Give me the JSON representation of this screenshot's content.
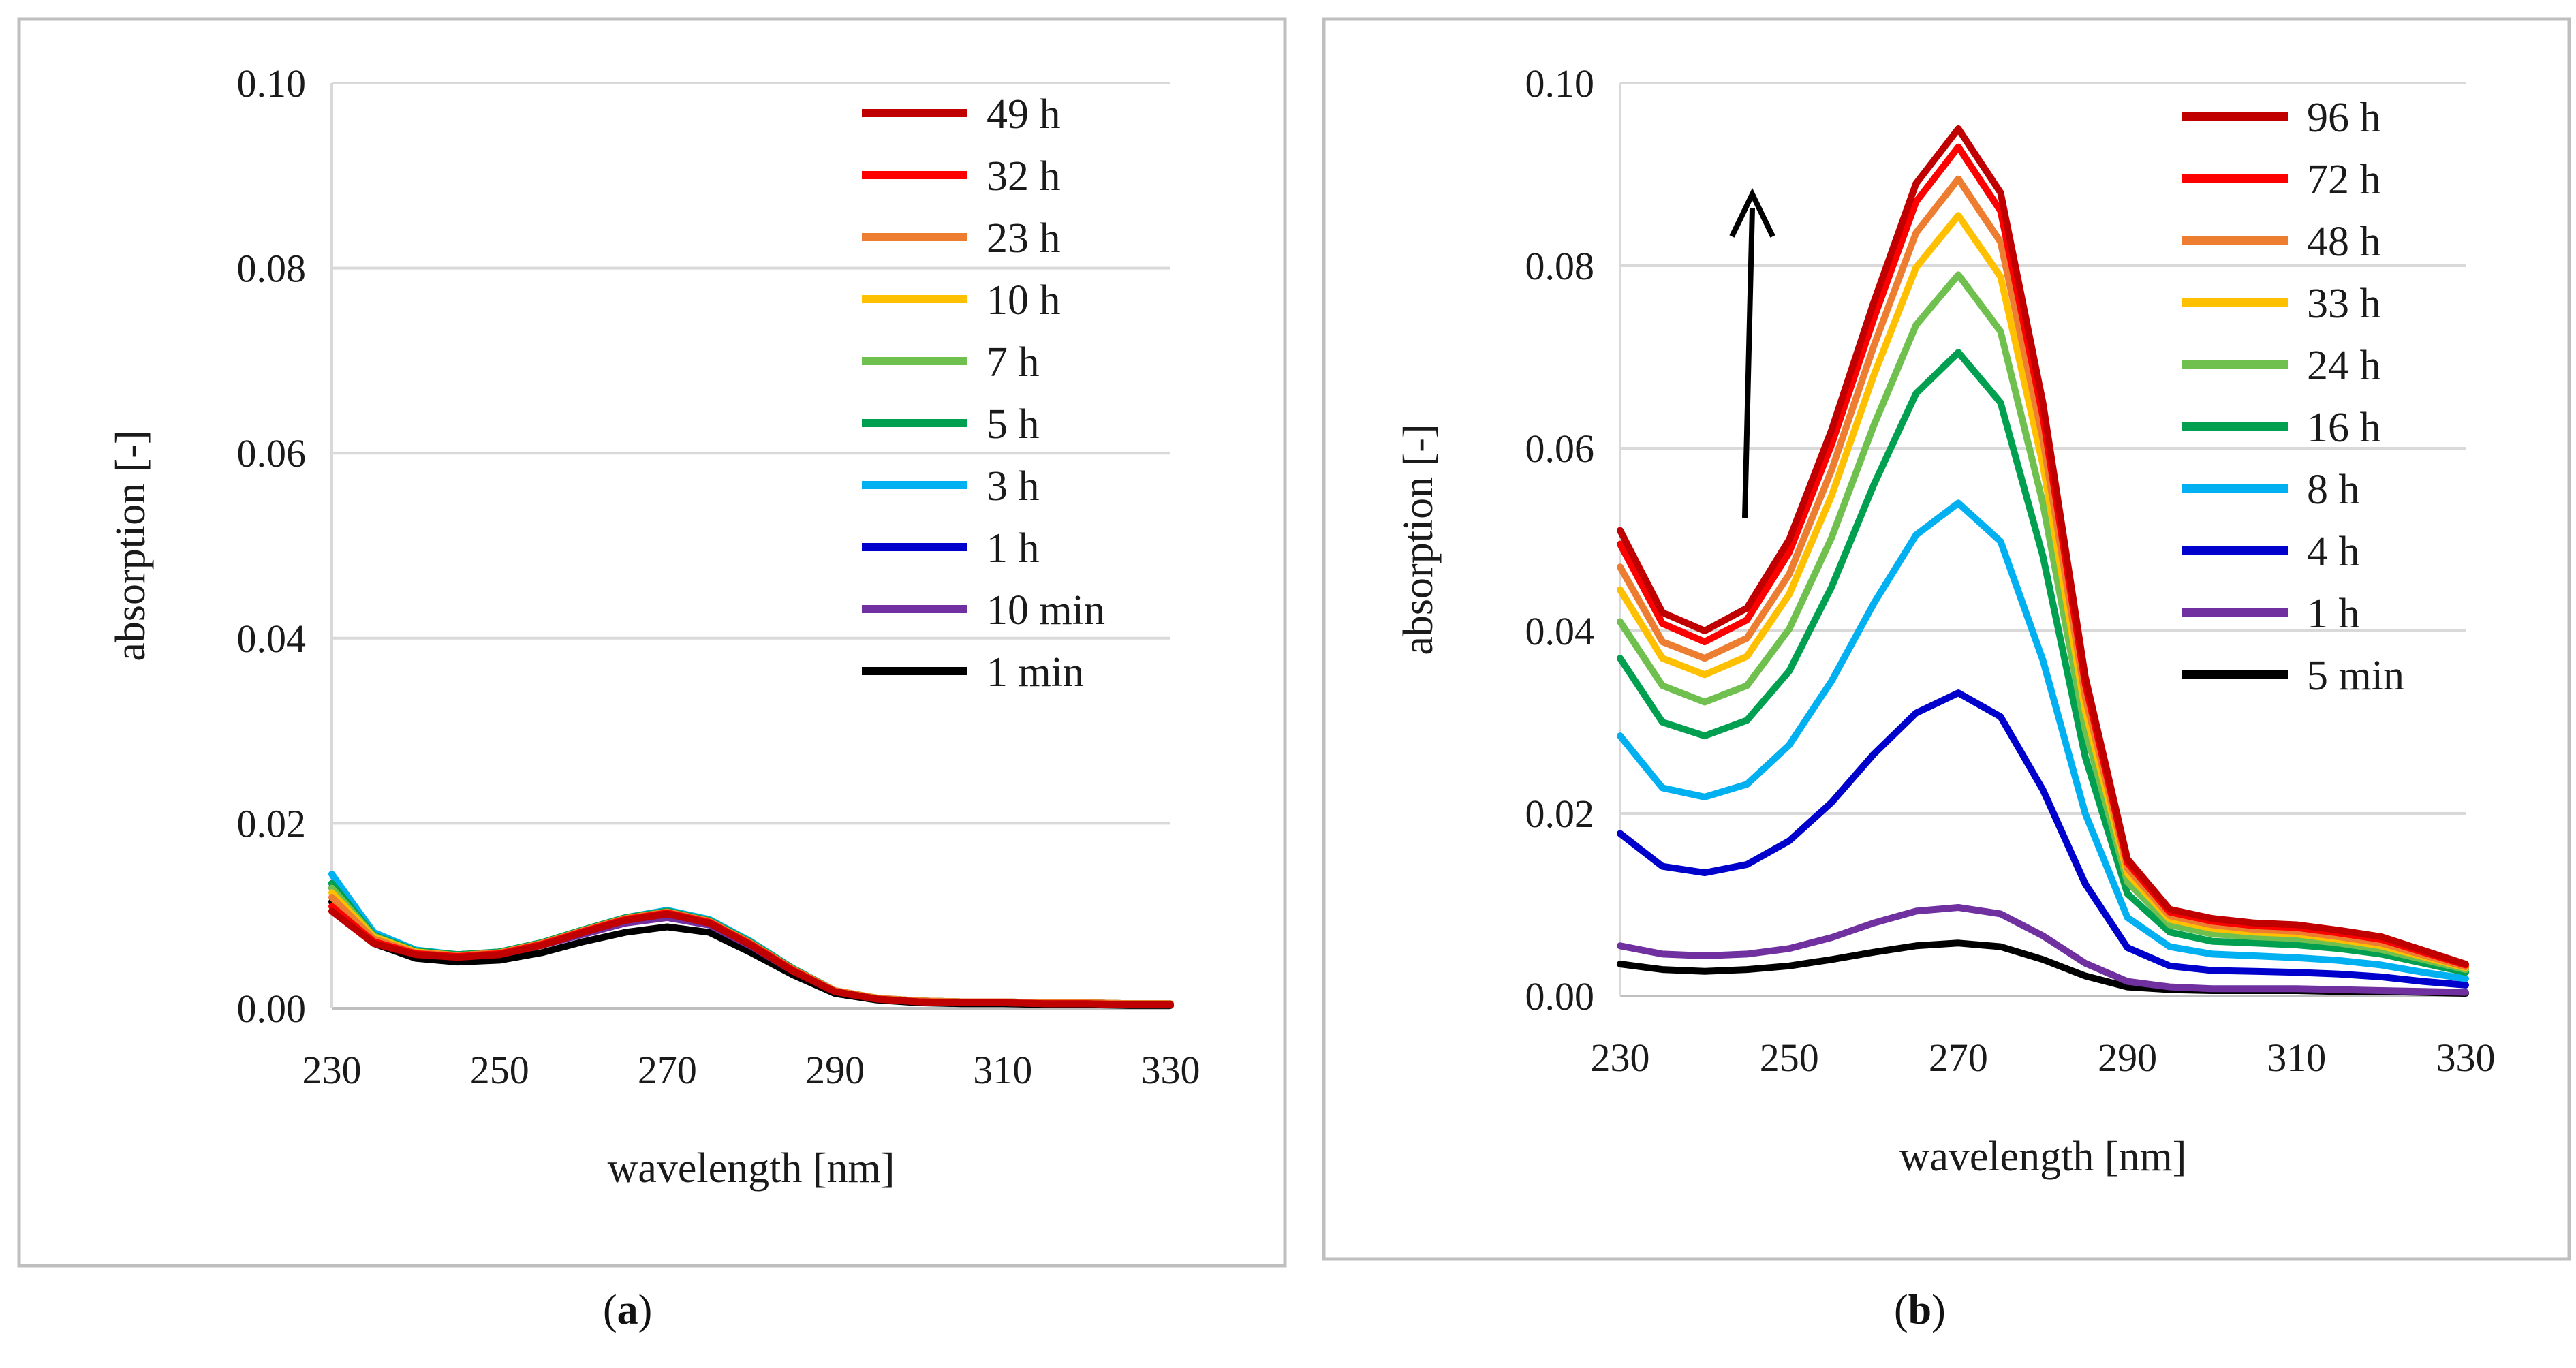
{
  "panels": [
    {
      "id": "a",
      "label_letter": "a",
      "chart_data": {
        "type": "line",
        "title": "",
        "xlabel": "wavelength [nm]",
        "ylabel": "absorption [-]",
        "xlim": [
          230,
          330
        ],
        "ylim": [
          0,
          0.1
        ],
        "xticks": [
          "230",
          "250",
          "270",
          "290",
          "310",
          "330"
        ],
        "yticks": [
          "0.00",
          "0.02",
          "0.04",
          "0.06",
          "0.08",
          "0.10"
        ],
        "grid": "horizontal",
        "legend_position": "top-right",
        "x": [
          230,
          235,
          240,
          245,
          250,
          255,
          260,
          265,
          270,
          275,
          280,
          285,
          290,
          295,
          300,
          305,
          310,
          315,
          320,
          325,
          330
        ],
        "series": [
          {
            "name": "49 h",
            "color": "#c00000",
            "values": [
              0.0105,
              0.007,
              0.0058,
              0.0055,
              0.0058,
              0.0068,
              0.0082,
              0.0095,
              0.0102,
              0.0092,
              0.0068,
              0.004,
              0.0018,
              0.001,
              0.0007,
              0.0006,
              0.0006,
              0.0005,
              0.0005,
              0.0004,
              0.0004
            ]
          },
          {
            "name": "32 h",
            "color": "#ff0000",
            "values": [
              0.011,
              0.0072,
              0.0059,
              0.0056,
              0.0059,
              0.0069,
              0.0083,
              0.0096,
              0.0103,
              0.0093,
              0.0069,
              0.0041,
              0.0018,
              0.001,
              0.0007,
              0.0006,
              0.0006,
              0.0005,
              0.0005,
              0.0004,
              0.0004
            ]
          },
          {
            "name": "23 h",
            "color": "#ed7d31",
            "values": [
              0.012,
              0.0075,
              0.006,
              0.0057,
              0.006,
              0.007,
              0.0084,
              0.0097,
              0.0104,
              0.0094,
              0.007,
              0.0042,
              0.0019,
              0.0011,
              0.0008,
              0.0007,
              0.0007,
              0.0006,
              0.0006,
              0.0005,
              0.0005
            ]
          },
          {
            "name": "10 h",
            "color": "#ffc000",
            "values": [
              0.0125,
              0.0077,
              0.0061,
              0.0057,
              0.006,
              0.007,
              0.0084,
              0.0097,
              0.0104,
              0.0094,
              0.007,
              0.0042,
              0.0019,
              0.0011,
              0.0008,
              0.0007,
              0.0007,
              0.0006,
              0.0006,
              0.0005,
              0.0005
            ]
          },
          {
            "name": "7 h",
            "color": "#70c050",
            "values": [
              0.013,
              0.0078,
              0.0061,
              0.0057,
              0.006,
              0.007,
              0.0084,
              0.0097,
              0.0104,
              0.0094,
              0.007,
              0.0042,
              0.0019,
              0.0011,
              0.0008,
              0.0007,
              0.0007,
              0.0006,
              0.0006,
              0.0005,
              0.0005
            ]
          },
          {
            "name": "5 h",
            "color": "#00a050",
            "values": [
              0.0135,
              0.0079,
              0.0062,
              0.0058,
              0.0061,
              0.0071,
              0.0085,
              0.0098,
              0.0105,
              0.0095,
              0.0071,
              0.0043,
              0.0019,
              0.0011,
              0.0008,
              0.0007,
              0.0007,
              0.0006,
              0.0006,
              0.0005,
              0.0005
            ]
          },
          {
            "name": "3 h",
            "color": "#00b0f0",
            "values": [
              0.0145,
              0.0082,
              0.0063,
              0.0058,
              0.0061,
              0.0071,
              0.0085,
              0.0098,
              0.0106,
              0.0096,
              0.0072,
              0.0043,
              0.0019,
              0.0011,
              0.0008,
              0.0007,
              0.0007,
              0.0006,
              0.0006,
              0.0005,
              0.0005
            ]
          },
          {
            "name": "1 h",
            "color": "#0000cc",
            "values": [
              0.0135,
              0.0079,
              0.0062,
              0.0058,
              0.006,
              0.007,
              0.0084,
              0.0097,
              0.0104,
              0.0094,
              0.007,
              0.0042,
              0.0019,
              0.0011,
              0.0008,
              0.0007,
              0.0007,
              0.0006,
              0.0006,
              0.0005,
              0.0005
            ]
          },
          {
            "name": "10 min",
            "color": "#7030a0",
            "values": [
              0.013,
              0.0077,
              0.006,
              0.0056,
              0.0058,
              0.0068,
              0.008,
              0.0092,
              0.0098,
              0.009,
              0.0067,
              0.004,
              0.0018,
              0.001,
              0.0007,
              0.0006,
              0.0006,
              0.0005,
              0.0005,
              0.0004,
              0.0004
            ]
          },
          {
            "name": "1 min",
            "color": "#000000",
            "values": [
              0.0115,
              0.007,
              0.0054,
              0.005,
              0.0052,
              0.006,
              0.0072,
              0.0082,
              0.0088,
              0.0082,
              0.006,
              0.0036,
              0.0016,
              0.0009,
              0.0006,
              0.0005,
              0.0005,
              0.0004,
              0.0004,
              0.0003,
              0.0003
            ]
          }
        ]
      }
    },
    {
      "id": "b",
      "label_letter": "b",
      "chart_data": {
        "type": "line",
        "title": "",
        "xlabel": "wavelength [nm]",
        "ylabel": "absorption [-]",
        "xlim": [
          230,
          330
        ],
        "ylim": [
          0,
          0.1
        ],
        "xticks": [
          "230",
          "250",
          "270",
          "290",
          "310",
          "330"
        ],
        "yticks": [
          "0.00",
          "0.02",
          "0.04",
          "0.06",
          "0.08",
          "0.10"
        ],
        "grid": "horizontal",
        "legend_position": "top-right",
        "annotation": "upward arrow indicating increasing absorption over time",
        "x": [
          230,
          235,
          240,
          245,
          250,
          255,
          260,
          265,
          270,
          275,
          280,
          285,
          290,
          295,
          300,
          305,
          310,
          315,
          320,
          325,
          330
        ],
        "series": [
          {
            "name": "96 h",
            "color": "#c00000",
            "values": [
              0.051,
              0.042,
              0.04,
              0.0425,
              0.05,
              0.062,
              0.076,
              0.089,
              0.095,
              0.088,
              0.065,
              0.035,
              0.015,
              0.0095,
              0.0085,
              0.008,
              0.0078,
              0.0072,
              0.0065,
              0.005,
              0.0035
            ]
          },
          {
            "name": "72 h",
            "color": "#ff0000",
            "values": [
              0.0495,
              0.0408,
              0.0388,
              0.0412,
              0.0486,
              0.0604,
              0.0742,
              0.087,
              0.093,
              0.086,
              0.0635,
              0.0342,
              0.0146,
              0.0092,
              0.0082,
              0.0077,
              0.0075,
              0.0069,
              0.0062,
              0.0048,
              0.0034
            ]
          },
          {
            "name": "48 h",
            "color": "#ed7d31",
            "values": [
              0.047,
              0.0388,
              0.037,
              0.0392,
              0.0462,
              0.0576,
              0.0712,
              0.0836,
              0.0895,
              0.0826,
              0.061,
              0.0328,
              0.014,
              0.0088,
              0.0078,
              0.0073,
              0.0071,
              0.0065,
              0.0058,
              0.0045,
              0.0032
            ]
          },
          {
            "name": "33 h",
            "color": "#ffc000",
            "values": [
              0.0445,
              0.037,
              0.0352,
              0.0372,
              0.044,
              0.0548,
              0.068,
              0.0798,
              0.0855,
              0.0788,
              0.0582,
              0.0313,
              0.0134,
              0.0084,
              0.0074,
              0.007,
              0.0068,
              0.0062,
              0.0055,
              0.0043,
              0.0031
            ]
          },
          {
            "name": "24 h",
            "color": "#70c050",
            "values": [
              0.041,
              0.034,
              0.0322,
              0.034,
              0.0402,
              0.0502,
              0.0625,
              0.0735,
              0.079,
              0.0728,
              0.054,
              0.0292,
              0.0125,
              0.0078,
              0.0068,
              0.0065,
              0.0063,
              0.0058,
              0.0051,
              0.004,
              0.0029
            ]
          },
          {
            "name": "16 h",
            "color": "#00a050",
            "values": [
              0.037,
              0.03,
              0.0285,
              0.0302,
              0.0356,
              0.0448,
              0.056,
              0.066,
              0.0705,
              0.065,
              0.0482,
              0.0262,
              0.0112,
              0.007,
              0.006,
              0.0058,
              0.0056,
              0.0052,
              0.0046,
              0.0036,
              0.0026
            ]
          },
          {
            "name": "8 h",
            "color": "#00b0f0",
            "values": [
              0.0285,
              0.0228,
              0.0218,
              0.0232,
              0.0275,
              0.0345,
              0.043,
              0.0505,
              0.054,
              0.0498,
              0.0368,
              0.02,
              0.0086,
              0.0054,
              0.0046,
              0.0044,
              0.0042,
              0.0039,
              0.0034,
              0.0026,
              0.0019
            ]
          },
          {
            "name": "4 h",
            "color": "#0000cc",
            "values": [
              0.0178,
              0.0142,
              0.0135,
              0.0144,
              0.017,
              0.0212,
              0.0265,
              0.031,
              0.0332,
              0.0306,
              0.0226,
              0.0123,
              0.0053,
              0.0033,
              0.0028,
              0.0027,
              0.0026,
              0.0024,
              0.0021,
              0.0016,
              0.0012
            ]
          },
          {
            "name": "1 h",
            "color": "#7030a0",
            "values": [
              0.0055,
              0.0046,
              0.0044,
              0.0046,
              0.0052,
              0.0064,
              0.008,
              0.0093,
              0.0097,
              0.009,
              0.0066,
              0.0036,
              0.0016,
              0.001,
              0.0008,
              0.0008,
              0.0008,
              0.0007,
              0.0006,
              0.0005,
              0.0004
            ]
          },
          {
            "name": "5 min",
            "color": "#000000",
            "values": [
              0.0035,
              0.0029,
              0.0027,
              0.0029,
              0.0033,
              0.004,
              0.0048,
              0.0055,
              0.0058,
              0.0054,
              0.004,
              0.0022,
              0.001,
              0.0007,
              0.0006,
              0.0006,
              0.0006,
              0.0005,
              0.0005,
              0.0004,
              0.0003
            ]
          }
        ]
      }
    }
  ]
}
